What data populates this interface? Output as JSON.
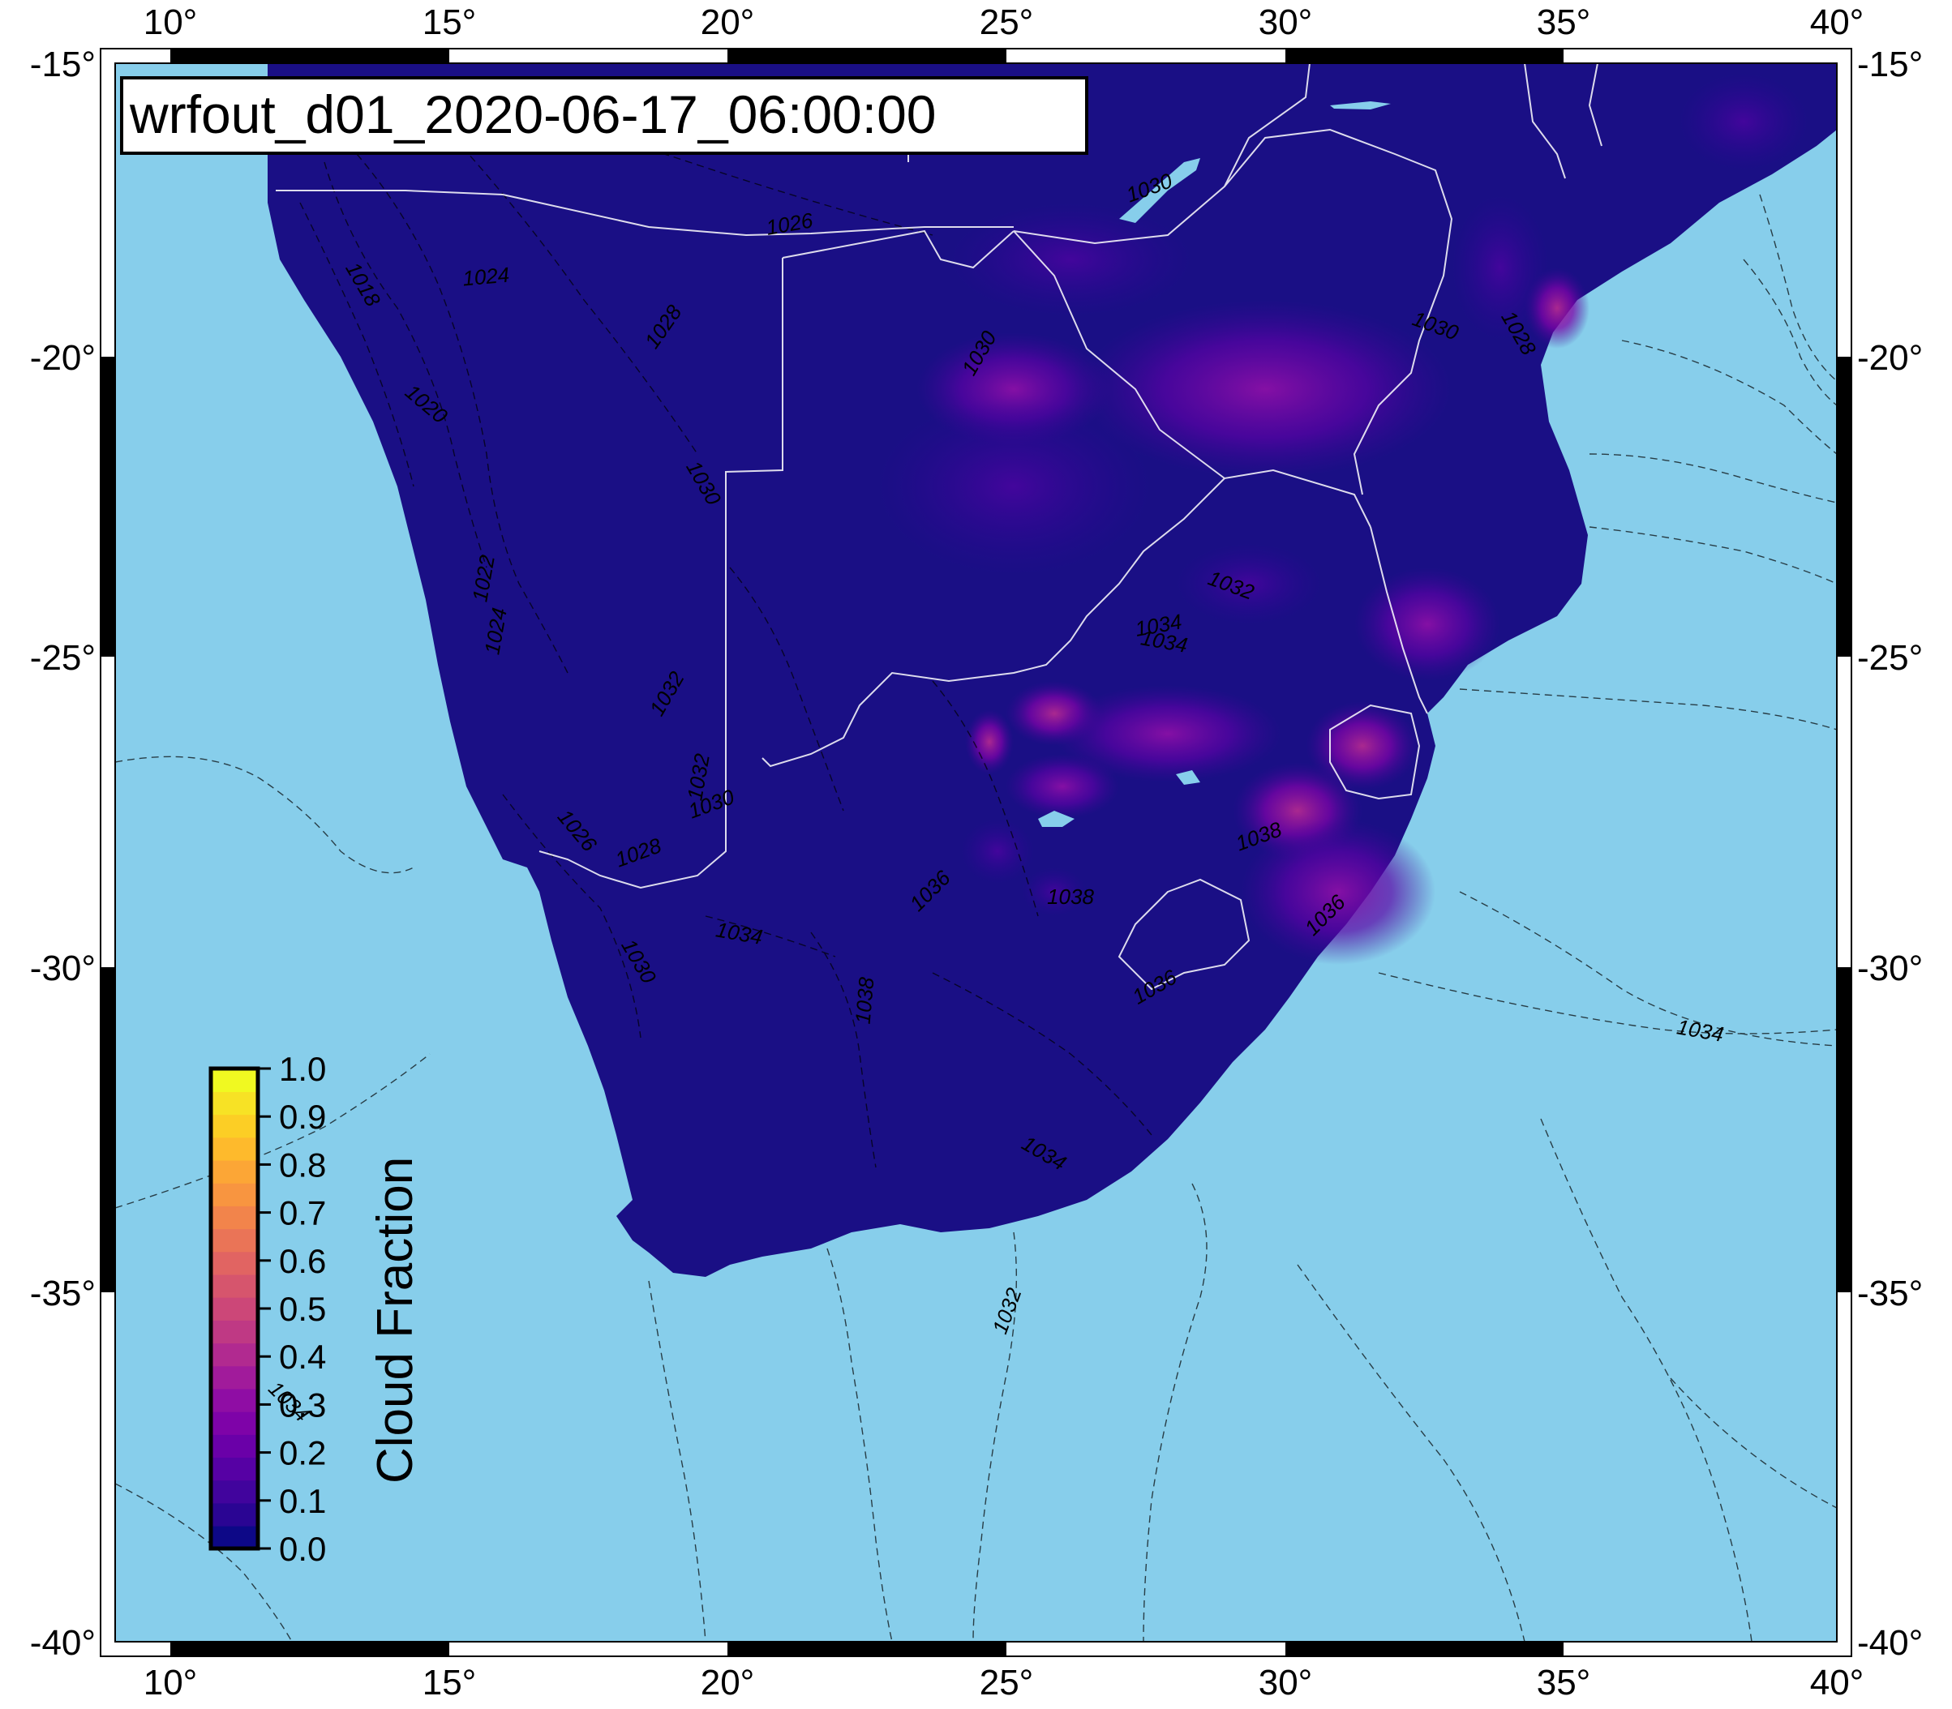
{
  "title": "wrfout_d01_2020-06-17_06:00:00",
  "colors": {
    "ocean": "#87ceeb",
    "land_base": "#1a0f85",
    "border": "#ffffff",
    "frame": "#000000"
  },
  "axes": {
    "lon_ticks": [
      "10°",
      "15°",
      "20°",
      "25°",
      "30°",
      "35°",
      "40°"
    ],
    "lat_ticks": [
      "-15°",
      "-20°",
      "-25°",
      "-30°",
      "-35°",
      "-40°"
    ]
  },
  "colorbar": {
    "label": "Cloud Fraction",
    "ticks": [
      "1.0",
      "0.9",
      "0.8",
      "0.7",
      "0.6",
      "0.5",
      "0.4",
      "0.3",
      "0.2",
      "0.1",
      "0.0"
    ],
    "colors": [
      "#0d0887",
      "#2a0593",
      "#41049d",
      "#5601a4",
      "#6a00a8",
      "#7e03a8",
      "#8f0da4",
      "#a11b9b",
      "#b12a90",
      "#bf3984",
      "#cc4778",
      "#d6556d",
      "#e16462",
      "#ea7457",
      "#f2844b",
      "#f89540",
      "#fca636",
      "#feba2c",
      "#fcce25",
      "#f7e225",
      "#f0f921"
    ]
  },
  "isobar_labels": [
    "1018",
    "1020",
    "1022",
    "1024",
    "1026",
    "1028",
    "1030",
    "1032",
    "1034",
    "1036",
    "1038"
  ],
  "contour_labels": [
    {
      "text": "1024"
    },
    {
      "text": "1018"
    },
    {
      "text": "1020"
    },
    {
      "text": "1022"
    },
    {
      "text": "1024"
    },
    {
      "text": "1026"
    },
    {
      "text": "1028"
    },
    {
      "text": "1030"
    },
    {
      "text": "1032"
    },
    {
      "text": "1032"
    },
    {
      "text": "1028"
    },
    {
      "text": "1026"
    },
    {
      "text": "1030"
    },
    {
      "text": "1030"
    },
    {
      "text": "1028"
    },
    {
      "text": "1030"
    },
    {
      "text": "1034"
    },
    {
      "text": "1030"
    },
    {
      "text": "1034"
    },
    {
      "text": "1032"
    },
    {
      "text": "1036"
    },
    {
      "text": "1038"
    },
    {
      "text": "1038"
    },
    {
      "text": "1036"
    },
    {
      "text": "1036"
    },
    {
      "text": "1038"
    },
    {
      "text": "1034"
    },
    {
      "text": "1034"
    },
    {
      "text": "1032"
    },
    {
      "text": "1030"
    }
  ]
}
